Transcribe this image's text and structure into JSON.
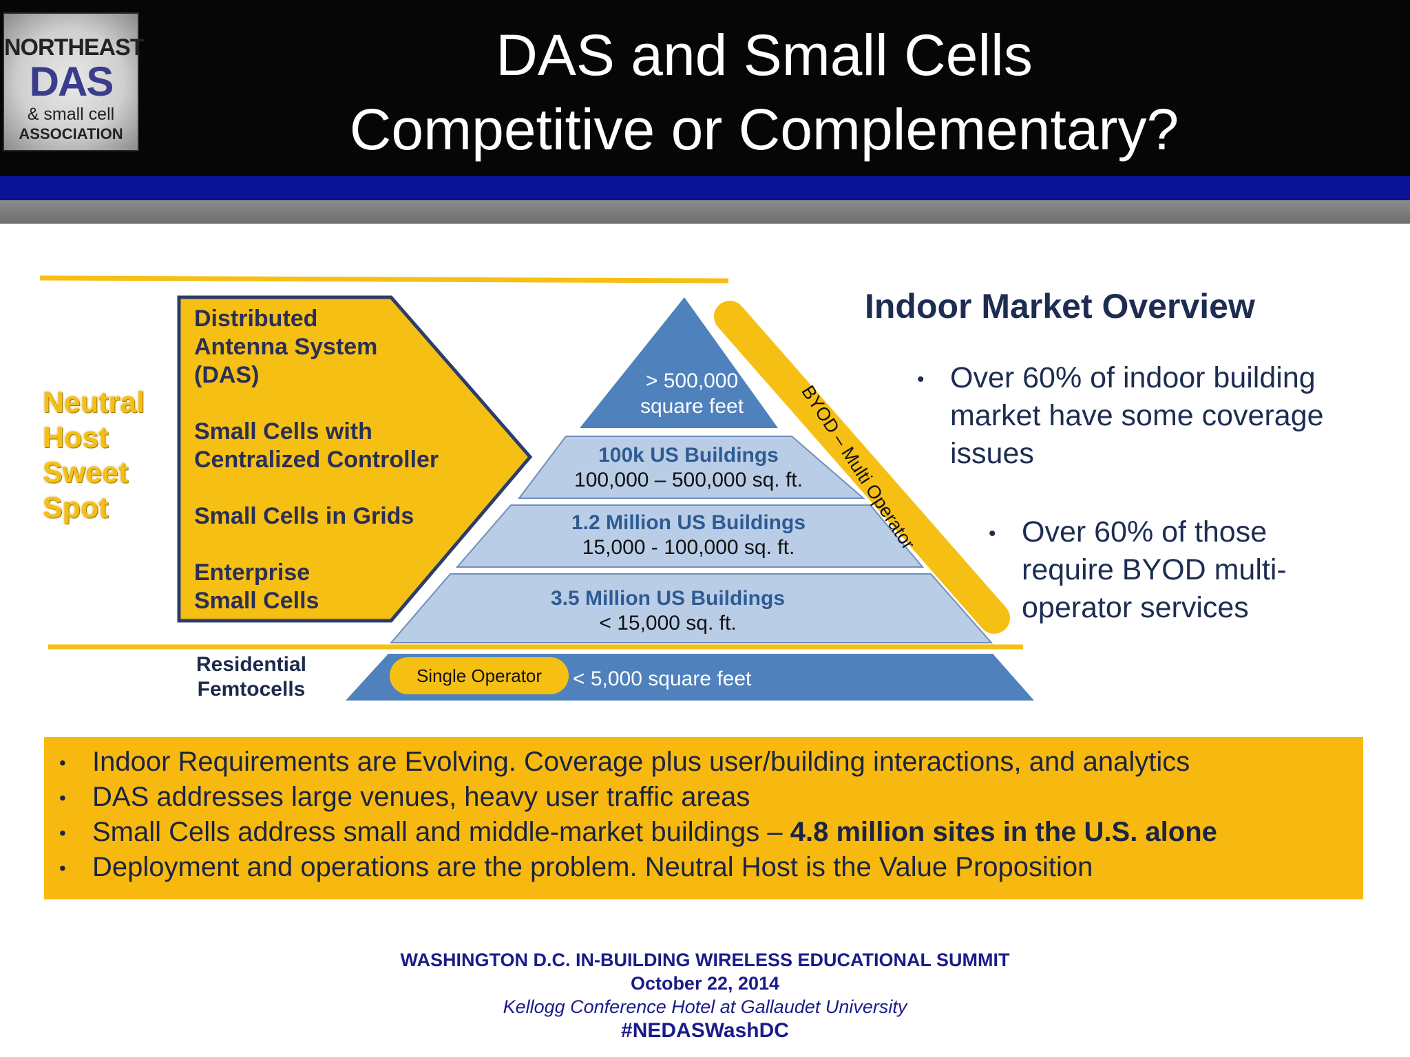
{
  "header": {
    "logo": {
      "line1": "NORTHEAST",
      "line2": "DAS",
      "line3": "& small cell",
      "line4": "ASSOCIATION"
    },
    "title_line1": "DAS and Small Cells",
    "title_line2": "Competitive or Complementary?"
  },
  "diagram": {
    "neutral_host": [
      "Neutral",
      "Host",
      "Sweet",
      "Spot"
    ],
    "das_list": [
      "Distributed",
      "Antenna System",
      "(DAS)",
      "",
      "Small Cells with",
      "Centralized Controller",
      "",
      "Small Cells in Grids",
      "",
      "Enterprise",
      "Small Cells"
    ],
    "apex": {
      "line1": "> 500,000",
      "line2": "square feet"
    },
    "levels": [
      {
        "title": "100k US Buildings",
        "range": "100,000 – 500,000 sq. ft."
      },
      {
        "title": "1.2 Million US Buildings",
        "range": "15,000 - 100,000 sq. ft."
      },
      {
        "title": "3.5 Million US Buildings",
        "range": "< 15,000 sq. ft."
      }
    ],
    "residential": {
      "line1": "Residential",
      "line2": "Femtocells"
    },
    "single_operator": "Single Operator",
    "base_size": "< 5,000 square feet",
    "byod_label": "BYOD – Multi Operator",
    "colors": {
      "yellow": "#f6bf14",
      "blue": "#4f81bd",
      "light_blue": "#b9cde6",
      "navy": "#1d2d52"
    }
  },
  "overview": {
    "title": "Indoor Market Overview",
    "bullet1": "Over 60% of indoor building market have some coverage issues",
    "bullet2": "Over 60% of those require BYOD multi-operator services"
  },
  "summary": {
    "items": [
      {
        "text": "Indoor Requirements are Evolving.  Coverage plus user/building interactions, and analytics",
        "bold": ""
      },
      {
        "text": "DAS addresses large venues, heavy user traffic areas",
        "bold": ""
      },
      {
        "text": "Small Cells address small and middle-market buildings – ",
        "bold": "4.8 million sites in the U.S. alone"
      },
      {
        "text": "Deployment and operations are the problem.  Neutral Host is the Value Proposition",
        "bold": ""
      }
    ]
  },
  "footer": {
    "line1": "WASHINGTON D.C. IN-BUILDING WIRELESS EDUCATIONAL SUMMIT",
    "line2": "October 22, 2014",
    "line3": "Kellogg Conference Hotel at Gallaudet University",
    "line4": "#NEDASWashDC"
  }
}
